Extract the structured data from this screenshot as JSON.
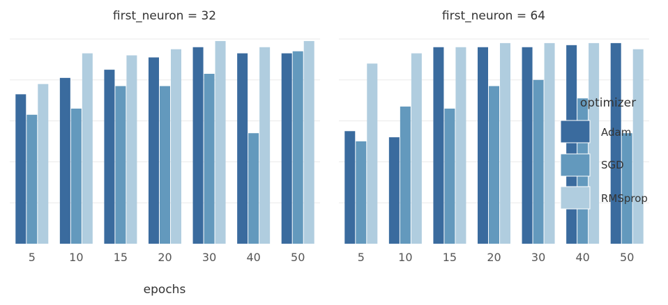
{
  "chart_data": {
    "type": "bar",
    "xlabel": "epochs",
    "ylabel": "",
    "ylim": [
      0,
      1.0
    ],
    "grid": true,
    "colors": {
      "Adam": "#3a6b9e",
      "SGD": "#6399bd",
      "RMSprop": "#b0cddf"
    },
    "categories": [
      "5",
      "10",
      "15",
      "20",
      "30",
      "40",
      "50"
    ],
    "legend": {
      "title": "optimizer",
      "placement": "right",
      "entries": [
        "Adam",
        "SGD",
        "RMSprop"
      ]
    },
    "panels": [
      {
        "title": "first_neuron = 32",
        "series": [
          {
            "name": "Adam",
            "values": [
              0.73,
              0.81,
              0.85,
              0.91,
              0.96,
              0.93,
              0.93
            ]
          },
          {
            "name": "SGD",
            "values": [
              0.63,
              0.66,
              0.77,
              0.77,
              0.83,
              0.54,
              0.94
            ]
          },
          {
            "name": "RMSprop",
            "values": [
              0.78,
              0.93,
              0.92,
              0.95,
              0.99,
              0.96,
              0.99
            ]
          }
        ]
      },
      {
        "title": "first_neuron = 64",
        "series": [
          {
            "name": "Adam",
            "values": [
              0.55,
              0.52,
              0.96,
              0.96,
              0.96,
              0.97,
              0.98
            ]
          },
          {
            "name": "SGD",
            "values": [
              0.5,
              0.67,
              0.66,
              0.77,
              0.8,
              0.71,
              0.54
            ]
          },
          {
            "name": "RMSprop",
            "values": [
              0.88,
              0.93,
              0.96,
              0.98,
              0.98,
              0.98,
              0.95
            ]
          }
        ]
      }
    ]
  }
}
